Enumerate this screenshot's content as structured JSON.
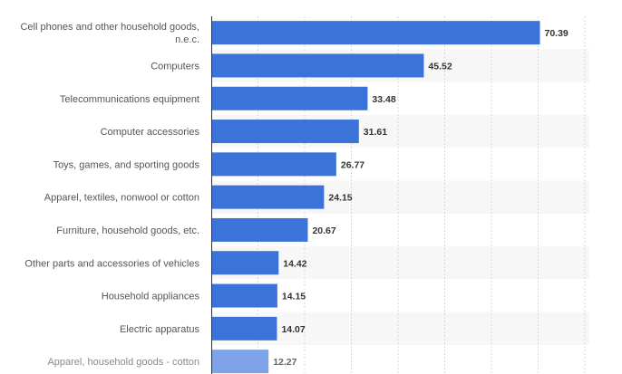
{
  "chart_data": {
    "type": "bar",
    "orientation": "horizontal",
    "categories": [
      [
        "Cell phones and other household goods,",
        "n.e.c."
      ],
      [
        "Computers"
      ],
      [
        "Telecommunications equipment"
      ],
      [
        "Computer accessories"
      ],
      [
        "Toys, games, and sporting goods"
      ],
      [
        "Apparel, textiles, nonwool or cotton"
      ],
      [
        "Furniture, household goods, etc."
      ],
      [
        "Other parts and accessories of vehicles"
      ],
      [
        "Household appliances"
      ],
      [
        "Electric apparatus"
      ],
      [
        "Apparel, household goods - cotton"
      ]
    ],
    "values": [
      70.39,
      45.52,
      33.48,
      31.61,
      26.77,
      24.15,
      20.67,
      14.42,
      14.15,
      14.07,
      12.27
    ],
    "value_labels": [
      "70.39",
      "45.52",
      "33.48",
      "31.61",
      "26.77",
      "24.15",
      "20.67",
      "14.42",
      "14.15",
      "14.07",
      "12.27"
    ],
    "xlim": [
      0,
      80
    ],
    "grid": true,
    "colors": {
      "bar": "#3b73d9",
      "bar_faded": "#7fa3e8",
      "band": "#f7f7f7",
      "axis": "#333333"
    }
  }
}
